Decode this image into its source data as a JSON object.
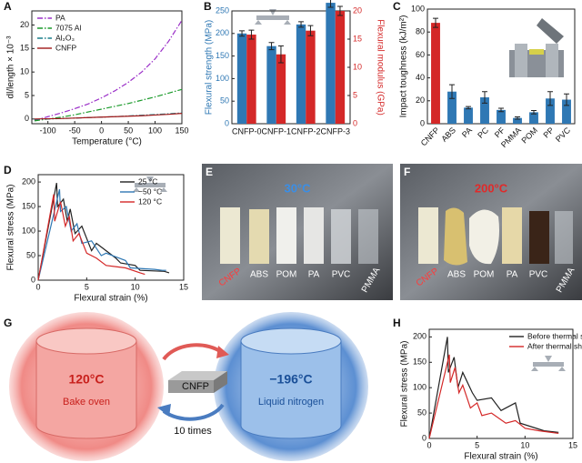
{
  "chart_data": [
    {
      "panel": "A",
      "type": "line",
      "xlabel": "Temperature (°C)",
      "ylabel": "dl/length × 10⁻³",
      "x": [
        -125,
        -100,
        -75,
        -50,
        -25,
        0,
        25,
        50,
        75,
        100,
        125,
        150
      ],
      "xlim": [
        -130,
        150
      ],
      "xticks": [
        -100,
        -50,
        0,
        50,
        100,
        150
      ],
      "ylim": [
        -1,
        23
      ],
      "yticks": [
        0,
        5,
        10,
        15,
        20
      ],
      "legend": "upper left",
      "series": [
        {
          "name": "PA",
          "color": "#9b30c8",
          "linestyle": "dashdot",
          "values": [
            -0.3,
            0.5,
            1.3,
            2.2,
            3.2,
            4.5,
            6,
            7.8,
            10,
            12.8,
            16.5,
            21
          ]
        },
        {
          "name": "7075 Al",
          "color": "#1a9a2a",
          "linestyle": "dashdot",
          "values": [
            -0.4,
            0,
            0.4,
            0.9,
            1.5,
            2.1,
            2.7,
            3.3,
            4,
            4.7,
            5.5,
            6.3
          ]
        },
        {
          "name": "Al₂O₃",
          "color": "#1a7f8a",
          "linestyle": "dashdot",
          "values": [
            -0.1,
            0,
            0.1,
            0.2,
            0.3,
            0.4,
            0.5,
            0.65,
            0.8,
            0.95,
            1.1,
            1.3
          ]
        },
        {
          "name": "CNFP",
          "color": "#a01818",
          "linestyle": "solid",
          "values": [
            0,
            0.05,
            0.1,
            0.2,
            0.3,
            0.4,
            0.5,
            0.6,
            0.7,
            0.85,
            1,
            1.2
          ]
        }
      ]
    },
    {
      "panel": "B",
      "type": "bar",
      "categories": [
        "CNFP-0",
        "CNFP-1",
        "CNFP-2",
        "CNFP-3"
      ],
      "ylabel": "Flexural strength (MPa)",
      "y2label": "Flexural modulus (GPa)",
      "ylim": [
        0,
        250
      ],
      "yticks": [
        0,
        50,
        100,
        150,
        200,
        250
      ],
      "y2lim": [
        0,
        20
      ],
      "y2ticks": [
        0,
        5,
        10,
        15,
        20
      ],
      "series": [
        {
          "name": "Flexural strength",
          "color": "#2f78b4",
          "values": [
            200,
            172,
            220,
            268
          ],
          "errors": [
            6,
            8,
            6,
            10
          ]
        },
        {
          "name": "Flexural modulus",
          "color": "#d42828",
          "axis": "y2",
          "values": [
            15.8,
            12.3,
            16.5,
            20
          ],
          "errors": [
            0.8,
            1.5,
            0.9,
            0.8
          ]
        }
      ]
    },
    {
      "panel": "C",
      "type": "bar",
      "categories": [
        "CNFP",
        "ABS",
        "PA",
        "PC",
        "PF",
        "PMMA",
        "POM",
        "PP",
        "PVC"
      ],
      "ylabel": "Impact toughness (kJ/m²)",
      "ylim": [
        0,
        100
      ],
      "yticks": [
        0,
        20,
        40,
        60,
        80,
        100
      ],
      "values": [
        88,
        28,
        14,
        23,
        12,
        5,
        10,
        22,
        21
      ],
      "errors": [
        4,
        6,
        1,
        5,
        1.5,
        1,
        1.5,
        6,
        5
      ],
      "colors": [
        "#d42828",
        "#2f78b4",
        "#2f78b4",
        "#2f78b4",
        "#2f78b4",
        "#2f78b4",
        "#2f78b4",
        "#2f78b4",
        "#2f78b4"
      ]
    },
    {
      "panel": "D",
      "type": "line",
      "xlabel": "Flexural strain (%)",
      "ylabel": "Flexural stress (MPa)",
      "xlim": [
        0,
        15
      ],
      "xticks": [
        0,
        5,
        10,
        15
      ],
      "ylim": [
        0,
        215
      ],
      "yticks": [
        0,
        50,
        100,
        150,
        200
      ],
      "legend": "upper right",
      "series": [
        {
          "name": "25 °C",
          "color": "#222222",
          "linestyle": "solid",
          "x": [
            0,
            1.9,
            2.0,
            2.6,
            3.0,
            3.3,
            3.8,
            4.5,
            5.5,
            6.0,
            8,
            8.5,
            10,
            10.5,
            13,
            13.5
          ],
          "values": [
            0,
            198,
            150,
            165,
            120,
            145,
            95,
            110,
            60,
            75,
            45,
            35,
            30,
            20,
            18,
            15
          ]
        },
        {
          "name": "−50 °C",
          "color": "#2f78b4",
          "linestyle": "solid",
          "x": [
            0,
            2.2,
            2.3,
            2.9,
            3.4,
            4.0,
            4.5,
            5.5,
            6.5,
            7,
            9,
            9.5,
            12,
            12.8,
            13.2
          ],
          "values": [
            0,
            185,
            140,
            150,
            100,
            115,
            75,
            80,
            50,
            55,
            40,
            25,
            22,
            20,
            20
          ]
        },
        {
          "name": "120 °C",
          "color": "#d42828",
          "linestyle": "solid",
          "x": [
            0,
            1.6,
            1.7,
            2.3,
            2.8,
            3.2,
            3.6,
            4.2,
            5,
            6,
            7,
            9,
            10.5,
            11
          ],
          "values": [
            0,
            175,
            120,
            160,
            110,
            130,
            80,
            95,
            55,
            45,
            30,
            25,
            15,
            12
          ]
        }
      ]
    },
    {
      "panel": "H",
      "type": "line",
      "xlabel": "Flexural strain (%)",
      "ylabel": "Flexural stress (MPa)",
      "xlim": [
        0,
        15
      ],
      "xticks": [
        0,
        5,
        10,
        15
      ],
      "ylim": [
        0,
        215
      ],
      "yticks": [
        0,
        50,
        100,
        150,
        200
      ],
      "legend": "upper right",
      "series": [
        {
          "name": "Before thermal shock",
          "color": "#222222",
          "linestyle": "solid",
          "x": [
            0,
            1.9,
            2.0,
            2.6,
            3.0,
            3.5,
            4.5,
            5.0,
            6.5,
            7.5,
            9,
            9.5,
            12,
            13.5
          ],
          "values": [
            0,
            200,
            130,
            160,
            100,
            130,
            90,
            75,
            80,
            55,
            70,
            30,
            15,
            12
          ]
        },
        {
          "name": "After thermal shock",
          "color": "#d42828",
          "linestyle": "solid",
          "x": [
            0,
            2.1,
            2.2,
            2.7,
            3.1,
            3.5,
            4.3,
            5.0,
            5.5,
            6.5,
            8,
            9,
            10,
            11.5,
            13.5
          ],
          "values": [
            0,
            165,
            110,
            140,
            90,
            105,
            60,
            70,
            45,
            50,
            30,
            35,
            20,
            15,
            10
          ]
        }
      ]
    }
  ],
  "photos": [
    {
      "panel": "E",
      "temperature": "30°C",
      "labels": [
        "CNFP",
        "ABS",
        "POM",
        "PA",
        "PVC",
        "PMMA"
      ]
    },
    {
      "panel": "F",
      "temperature": "200°C",
      "labels": [
        "CNFP",
        "ABS",
        "POM",
        "PA",
        "PVC",
        "PMMA"
      ]
    }
  ],
  "diagram": {
    "panel": "G",
    "hot": {
      "temperature": "120°C",
      "label": "Bake oven"
    },
    "cold": {
      "temperature": "−196°C",
      "label": "Liquid nitrogen"
    },
    "sample": "CNFP",
    "cycles": "10 times"
  }
}
